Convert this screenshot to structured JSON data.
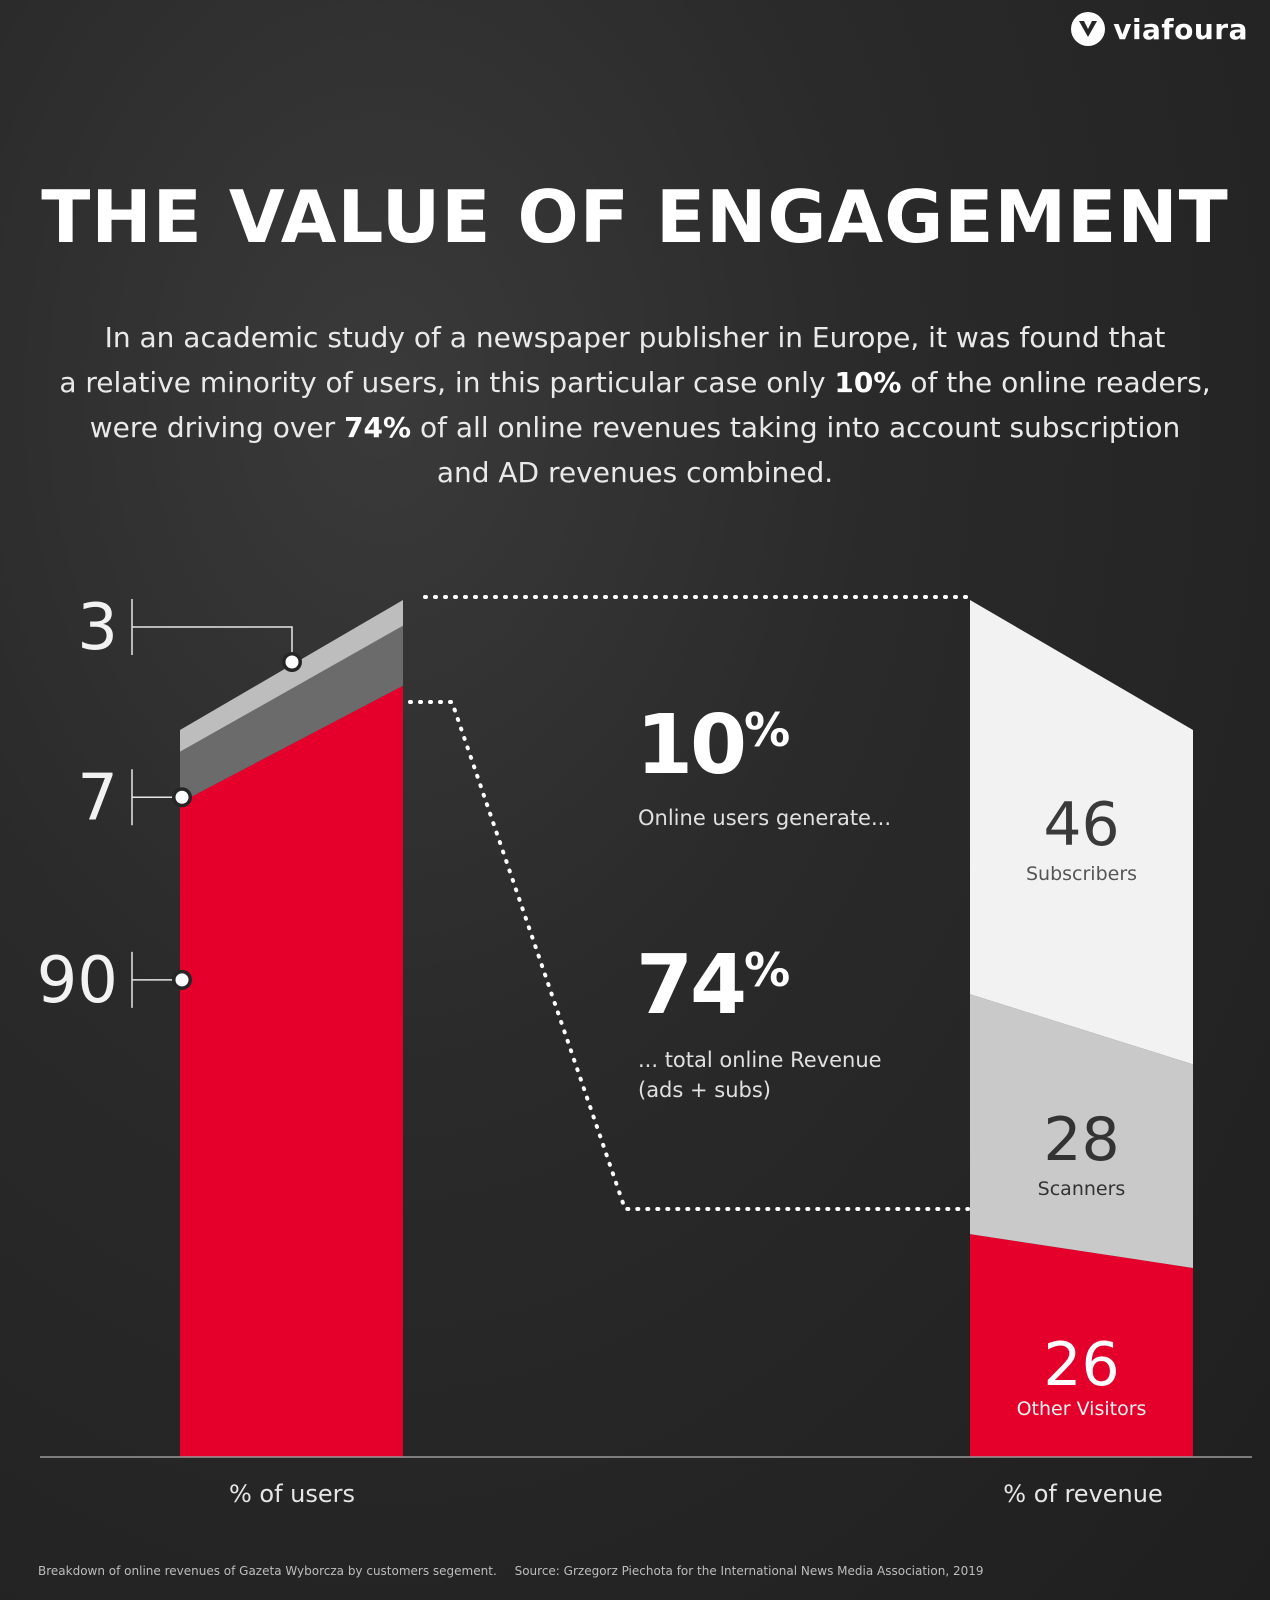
{
  "brand": {
    "name": "viafoura",
    "logo_icon": "viafoura-v-logo"
  },
  "title": "THE VALUE OF ENGAGEMENT",
  "intro": {
    "line1": "In an academic study of a newspaper publisher in Europe, it was found that",
    "line2_a": "a relative minority of users, in this particular case only ",
    "line2_b": "10%",
    "line2_c": " of the online readers,",
    "line3_a": "were driving over ",
    "line3_b": "74%",
    "line3_c": " of all online revenues taking into account subscription",
    "line4": "and AD revenues combined."
  },
  "stats": {
    "first_value": "10",
    "first_unit": "%",
    "first_caption": "Online users generate...",
    "second_value": "74",
    "second_unit": "%",
    "second_caption_1": "... total online Revenue",
    "second_caption_2": "(ads + subs)"
  },
  "chart_data": [
    {
      "type": "bar",
      "xlabel": "% of users",
      "segments": [
        {
          "label": "",
          "value": 90,
          "color": "#e4002b"
        },
        {
          "label": "",
          "value": 7,
          "color": "#6b6b6b"
        },
        {
          "label": "",
          "value": 3,
          "color": "#bdbdbd"
        }
      ]
    },
    {
      "type": "bar",
      "xlabel": "% of revenue",
      "segments": [
        {
          "label": "Other Visitors",
          "value": 26,
          "color": "#e4002b"
        },
        {
          "label": "Scanners",
          "value": 28,
          "color": "#c9c9c9"
        },
        {
          "label": "Subscribers",
          "value": 46,
          "color": "#f2f2f2"
        }
      ]
    }
  ],
  "footer": {
    "note": "Breakdown of online revenues of Gazeta Wyborcza by customers segement.",
    "source": "Source: Grzegorz Piechota for the International News Media Association, 2019"
  }
}
